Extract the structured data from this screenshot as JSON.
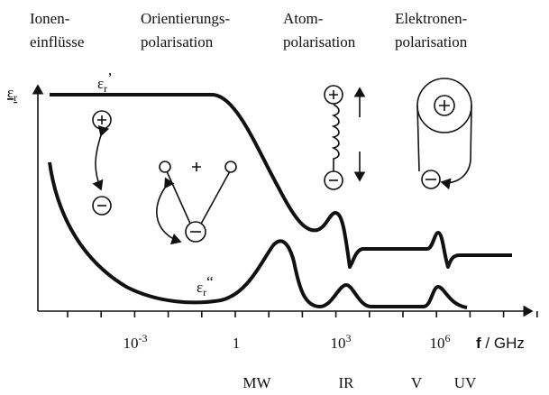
{
  "header": {
    "regions": [
      {
        "line1": "Ionen-",
        "line2": "einflüsse"
      },
      {
        "line1": "Orientierungs-",
        "line2": "polarisation"
      },
      {
        "line1": "Atom-",
        "line2": "polarisation"
      },
      {
        "line1": "Elektronen-",
        "line2": "polarisation"
      }
    ]
  },
  "axes": {
    "y_label": {
      "symbol": "ε",
      "sub": "r"
    },
    "x_label": {
      "bold": "f",
      "rest": " / GHz"
    },
    "x_ticks": [
      {
        "base": "10",
        "exp": "-3"
      },
      {
        "base": "1",
        "exp": ""
      },
      {
        "base": "10",
        "exp": "3"
      },
      {
        "base": "10",
        "exp": "6"
      }
    ],
    "bands": [
      "MW",
      "IR",
      "V",
      "UV"
    ]
  },
  "curves": {
    "real": {
      "symbol": "ε",
      "sub": "r",
      "mark": "’"
    },
    "imag": {
      "symbol": "ε",
      "sub": "r",
      "mark": "“"
    }
  }
}
